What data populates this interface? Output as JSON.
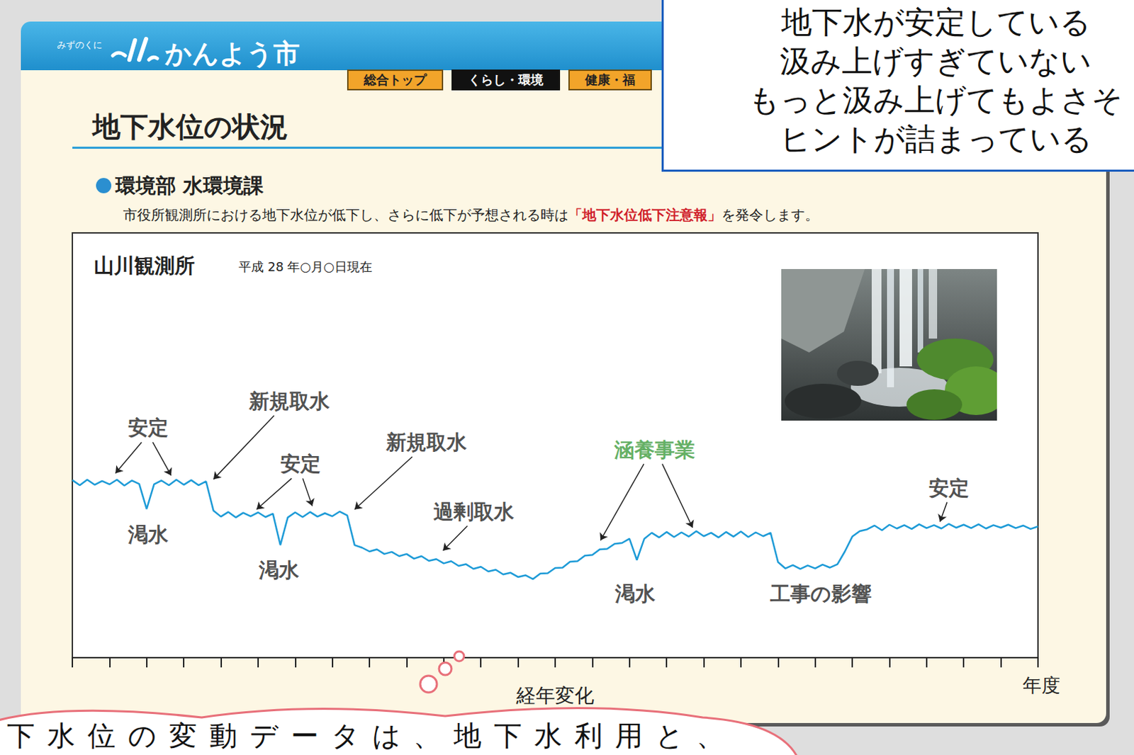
{
  "page": {
    "header": {
      "logo_small": "みずのくに",
      "logo": "かんよう市",
      "nav": [
        "総合トップ",
        "くらし・環境",
        "健康・福"
      ]
    },
    "title": "地下水位の状況",
    "department": "環境部 水環境課",
    "notice": {
      "before": "市役所観測所における地下水位が低下し、さらに低下が予想される時は",
      "highlight": "「地下水位低下注意報」",
      "after": "を発令します。"
    },
    "callout": [
      "地下水が安定している",
      "汲み上げすぎていない",
      "もっと汲み上げてもよさそ",
      "ヒントが詰まっている"
    ],
    "bubble": "下水位の変動データは、地下水利用と、"
  },
  "chart_data": {
    "type": "line",
    "title": "山川観測所",
    "subtitle": "平成 28 年○月○日現在",
    "xlabel": "経年変化",
    "xlabel_end": "年度",
    "color": "#1e9bd7",
    "grid": false,
    "tick_labels": false,
    "xlim": [
      0,
      130
    ],
    "xticks": [
      0,
      5,
      10,
      15,
      20,
      25,
      30,
      35,
      40,
      45,
      50,
      55,
      60,
      65,
      70,
      75,
      80,
      85,
      90,
      95,
      100,
      105,
      110,
      115,
      120,
      125,
      130
    ],
    "ylim": [
      0,
      100
    ],
    "yticks": [],
    "x": [
      0,
      1,
      2,
      3,
      4,
      5,
      6,
      7,
      8,
      9,
      10,
      11,
      12,
      13,
      14,
      15,
      16,
      17,
      18,
      19,
      20,
      21,
      22,
      23,
      24,
      25,
      26,
      27,
      28,
      29,
      30,
      31,
      32,
      33,
      34,
      35,
      36,
      37,
      38,
      39,
      40,
      41,
      42,
      43,
      44,
      45,
      46,
      47,
      48,
      49,
      50,
      51,
      52,
      53,
      54,
      55,
      56,
      57,
      58,
      59,
      60,
      61,
      62,
      63,
      64,
      65,
      66,
      67,
      68,
      69,
      70,
      71,
      72,
      73,
      74,
      75,
      76,
      77,
      78,
      79,
      80,
      81,
      82,
      83,
      84,
      85,
      86,
      87,
      88,
      89,
      90,
      91,
      92,
      93,
      94,
      95,
      96,
      97,
      98,
      99,
      100,
      101,
      102,
      103,
      104,
      105,
      106,
      107,
      108,
      109,
      110,
      111,
      112,
      113,
      114,
      115,
      116,
      117,
      118,
      119,
      120,
      121,
      122,
      123,
      124,
      125,
      126,
      127,
      128,
      129,
      130
    ],
    "values": [
      41.8,
      40.6,
      41.9,
      40.7,
      41.6,
      40.8,
      41.9,
      40.5,
      41.7,
      40.9,
      35.0,
      40.8,
      41.7,
      40.6,
      41.9,
      40.7,
      41.8,
      40.6,
      41.5,
      34.6,
      33.2,
      34.3,
      33.0,
      34.1,
      33.3,
      34.2,
      33.1,
      33.9,
      26.5,
      33.0,
      34.2,
      33.1,
      34.3,
      33.2,
      34.0,
      33.3,
      34.4,
      33.5,
      26.5,
      25.9,
      25.0,
      25.5,
      24.4,
      24.9,
      23.9,
      24.4,
      23.3,
      23.9,
      22.8,
      23.2,
      22.2,
      22.7,
      21.6,
      22.0,
      20.9,
      21.4,
      20.3,
      20.7,
      19.6,
      20.0,
      19.0,
      19.4,
      18.5,
      19.8,
      19.9,
      21.1,
      21.2,
      22.6,
      22.7,
      24.0,
      24.2,
      25.5,
      25.6,
      26.8,
      27.0,
      28.0,
      23.0,
      28.0,
      29.4,
      28.3,
      29.6,
      28.4,
      29.5,
      28.5,
      29.8,
      28.6,
      29.4,
      28.3,
      29.6,
      28.5,
      29.7,
      28.4,
      29.5,
      28.6,
      29.4,
      22.5,
      21.0,
      21.8,
      20.9,
      21.7,
      21.0,
      21.9,
      21.2,
      22.0,
      25.0,
      28.5,
      29.8,
      30.2,
      31.1,
      30.0,
      31.3,
      30.4,
      31.2,
      30.3,
      31.4,
      30.5,
      31.2,
      30.4,
      31.5,
      30.6,
      31.3,
      30.5,
      31.4,
      30.4,
      31.2,
      30.6,
      31.3,
      30.5,
      31.1,
      30.3,
      30.9
    ],
    "annotations": [
      {
        "text": "安定",
        "color": "#222222",
        "at": [
          10.2,
          54.1
        ],
        "arrows_to": [
          [
            5.8,
            43.4
          ],
          [
            13.3,
            42.9
          ]
        ]
      },
      {
        "text": "渇水",
        "color": "#222222",
        "at": [
          10.2,
          28.9
        ],
        "arrows_to": []
      },
      {
        "text": "新規取水",
        "color": "#222222",
        "at": [
          29.2,
          60.4
        ],
        "arrows_to": [
          [
            19.0,
            42.0
          ]
        ]
      },
      {
        "text": "安定",
        "color": "#222222",
        "at": [
          30.7,
          45.6
        ],
        "arrows_to": [
          [
            24.8,
            34.9
          ],
          [
            32.3,
            35.7
          ]
        ]
      },
      {
        "text": "渇水",
        "color": "#222222",
        "at": [
          27.8,
          20.7
        ],
        "arrows_to": []
      },
      {
        "text": "新規取水",
        "color": "#222222",
        "at": [
          47.7,
          50.7
        ],
        "arrows_to": [
          [
            38.0,
            34.9
          ]
        ]
      },
      {
        "text": "過剰取水",
        "color": "#222222",
        "at": [
          54.0,
          34.4
        ],
        "arrows_to": [
          [
            49.9,
            25.2
          ]
        ]
      },
      {
        "text": "涵養事業",
        "color": "#3a9a3a",
        "at": [
          78.4,
          49.0
        ],
        "arrows_to": [
          [
            71.1,
            27.6
          ],
          [
            83.5,
            30.6
          ]
        ]
      },
      {
        "text": "渇水",
        "color": "#222222",
        "at": [
          75.8,
          15.0
        ],
        "arrows_to": []
      },
      {
        "text": "工事の影響",
        "color": "#222222",
        "at": [
          100.8,
          15.0
        ],
        "arrows_to": []
      },
      {
        "text": "安定",
        "color": "#222222",
        "at": [
          118.0,
          40.0
        ],
        "arrows_to": [
          [
            116.8,
            32.0
          ]
        ]
      }
    ]
  }
}
